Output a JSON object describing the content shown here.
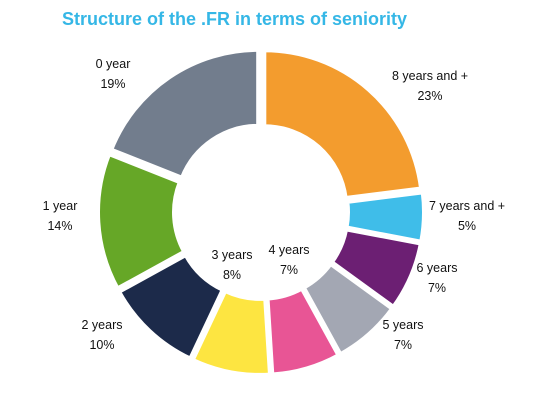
{
  "chart_data": {
    "type": "pie",
    "title": "Structure of the .FR in terms of seniority",
    "slices": [
      {
        "name": "8 years and +",
        "value": 23,
        "value_label": "23%",
        "color": "#f39c2e"
      },
      {
        "name": "7 years and +",
        "value": 5,
        "value_label": "5%",
        "color": "#3fbde9"
      },
      {
        "name": "6 years",
        "value": 7,
        "value_label": "7%",
        "color": "#6c1f73"
      },
      {
        "name": "5 years",
        "value": 7,
        "value_label": "7%",
        "color": "#a3a7b3"
      },
      {
        "name": "4 years",
        "value": 7,
        "value_label": "7%",
        "color": "#e85595"
      },
      {
        "name": "3 years",
        "value": 8,
        "value_label": "8%",
        "color": "#fde541"
      },
      {
        "name": "2 years",
        "value": 10,
        "value_label": "10%",
        "color": "#1c2a4a"
      },
      {
        "name": "1 year",
        "value": 14,
        "value_label": "14%",
        "color": "#66a727"
      },
      {
        "name": "0 year",
        "value": 19,
        "value_label": "19%",
        "color": "#727d8d"
      }
    ]
  }
}
